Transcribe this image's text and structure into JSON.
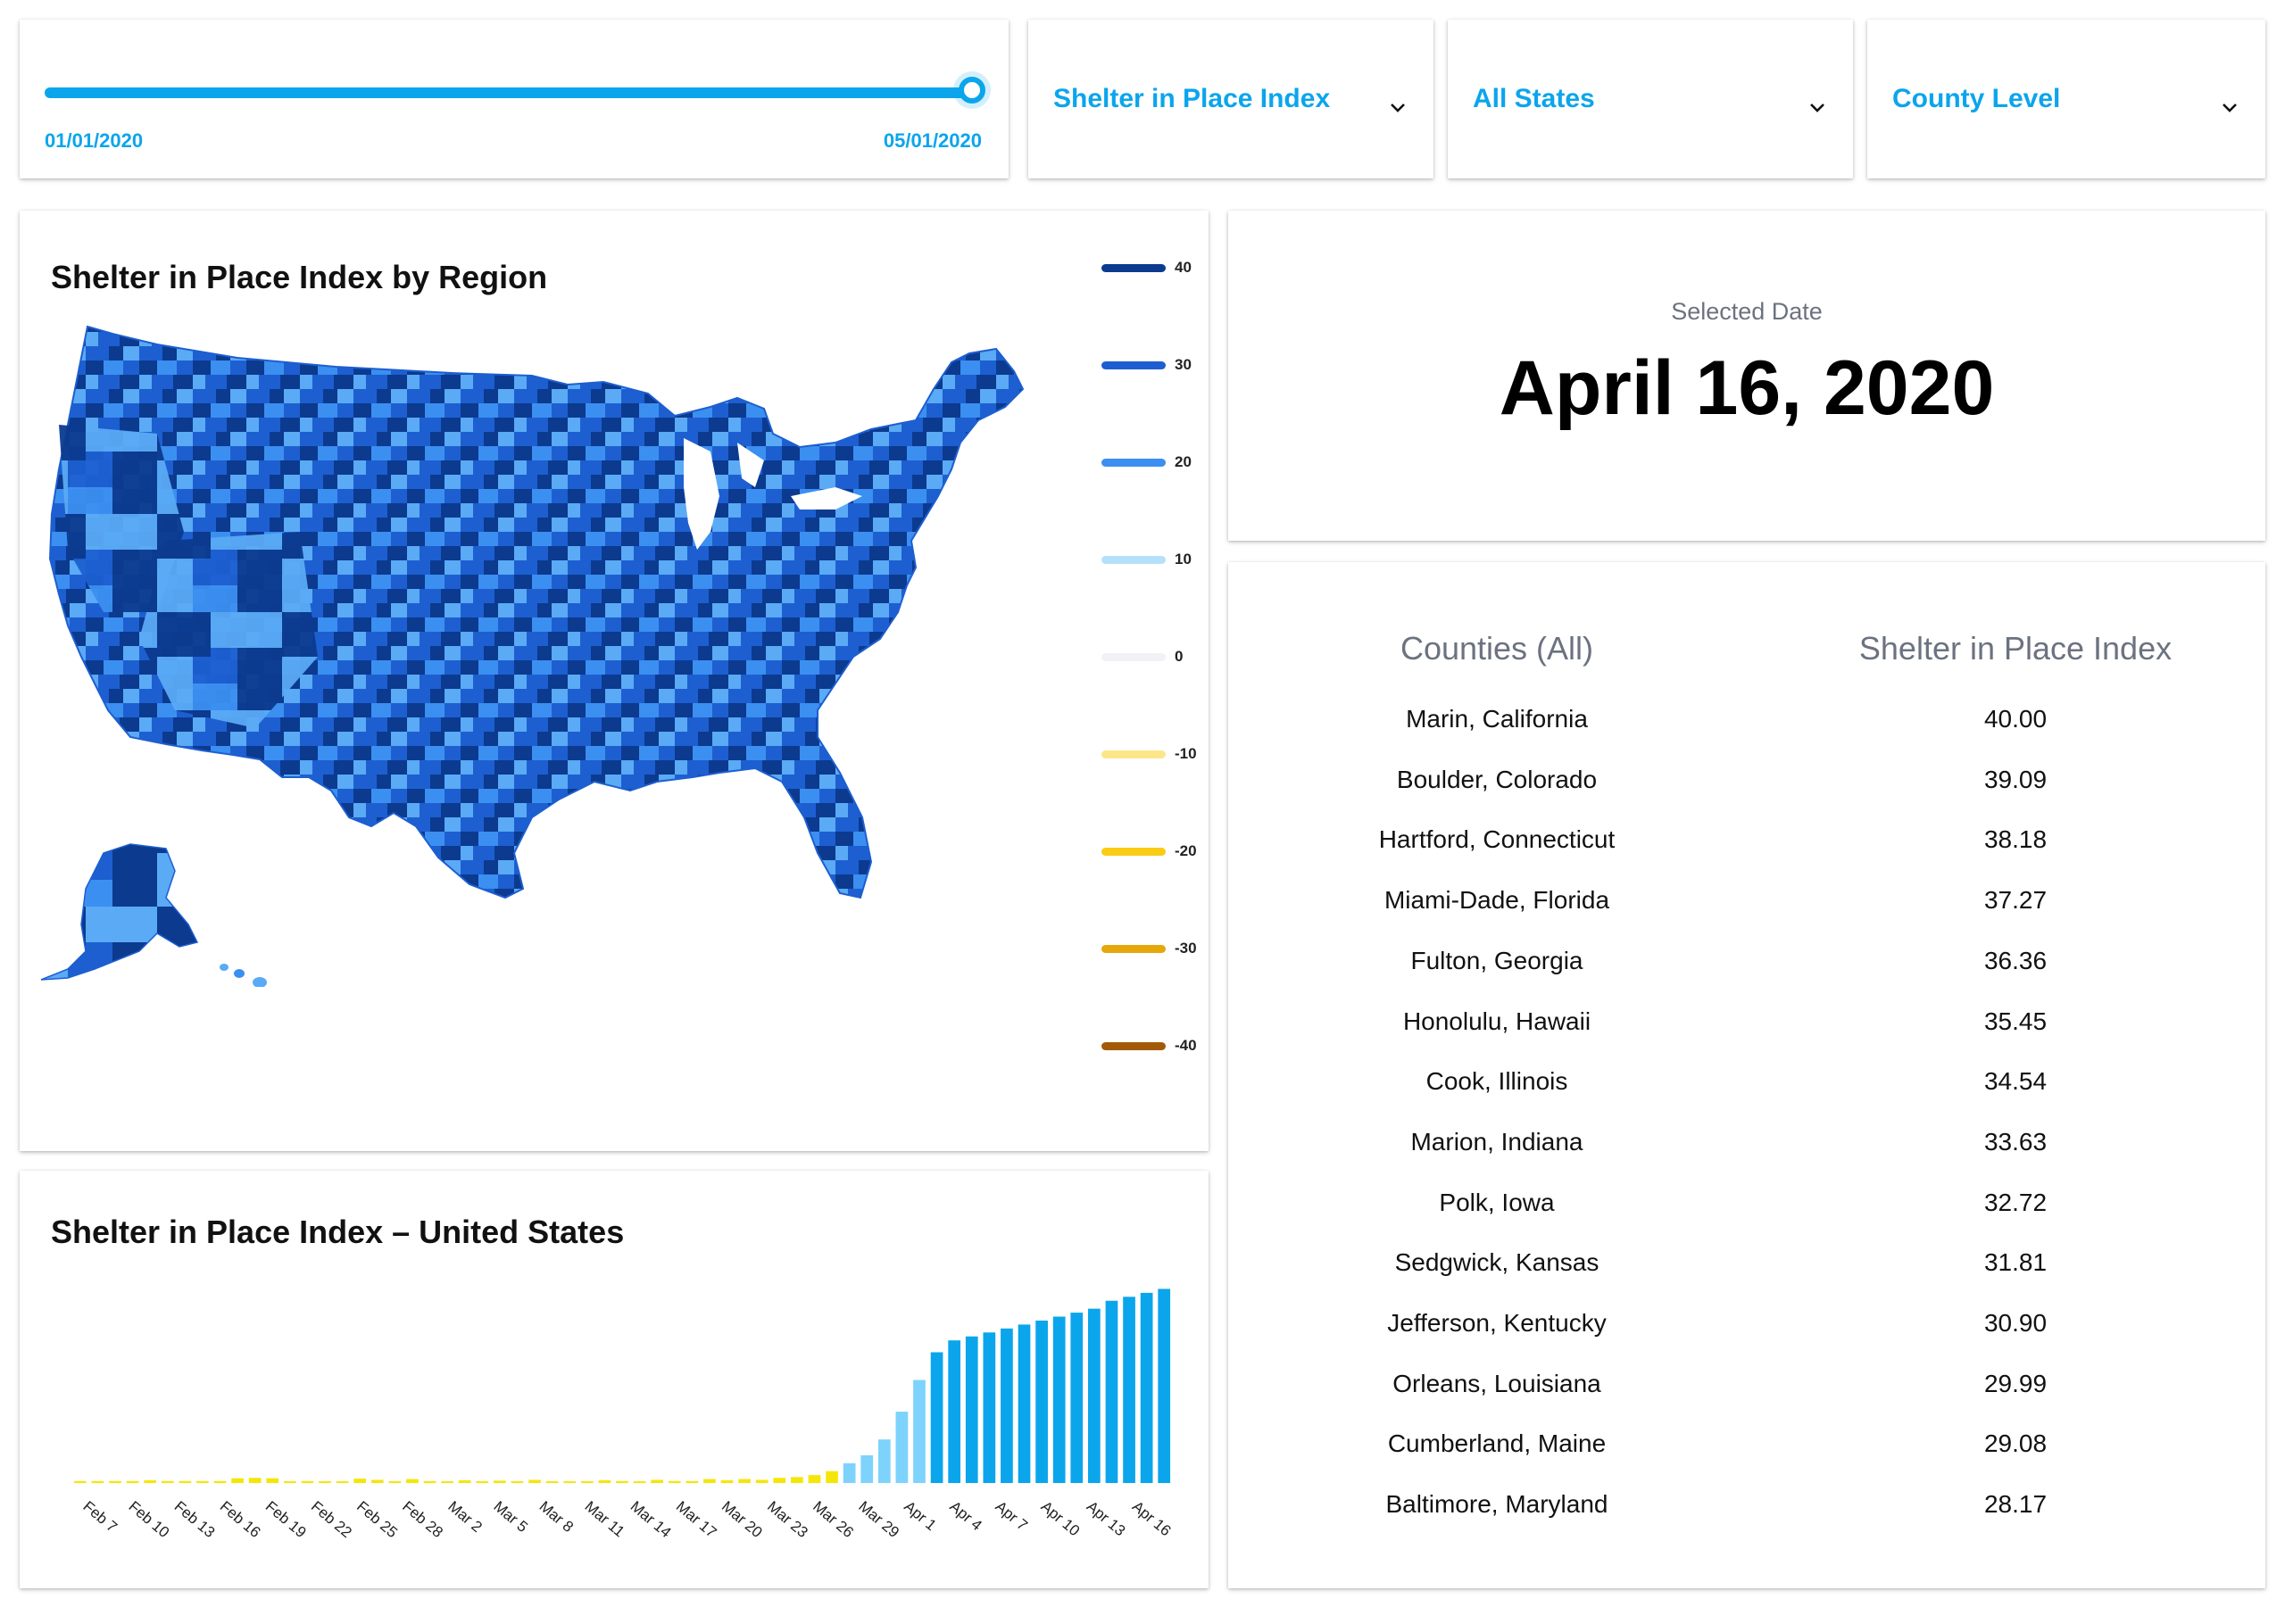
{
  "slider": {
    "start_label": "01/01/2020",
    "end_label": "05/01/2020",
    "value_fraction": 1.0
  },
  "dropdowns": [
    {
      "label": "Shelter in Place Index",
      "icon": "chevron-down-icon"
    },
    {
      "label": "All States",
      "icon": "chevron-down-icon"
    },
    {
      "label": "County Level",
      "icon": "chevron-down-icon"
    }
  ],
  "map": {
    "title": "Shelter in Place Index by Region",
    "legend": [
      {
        "label": "40",
        "color": "#0b3a8f"
      },
      {
        "label": "30",
        "color": "#1d5fd1"
      },
      {
        "label": "20",
        "color": "#3b8ff0"
      },
      {
        "label": "10",
        "color": "#b6e0fa"
      },
      {
        "label": "0",
        "color": "#f1f2f6"
      },
      {
        "label": "-10",
        "color": "#fde68a"
      },
      {
        "label": "-20",
        "color": "#facc15"
      },
      {
        "label": "-30",
        "color": "#e6a70b"
      },
      {
        "label": "-40",
        "color": "#a35a07"
      }
    ]
  },
  "selected": {
    "label": "Selected Date",
    "date": "April 16, 2020"
  },
  "table": {
    "headers": [
      "Counties (All)",
      "Shelter in Place Index"
    ],
    "rows": [
      {
        "county": "Marin, California",
        "value": "40.00"
      },
      {
        "county": "Boulder, Colorado",
        "value": "39.09"
      },
      {
        "county": "Hartford, Connecticut",
        "value": "38.18"
      },
      {
        "county": "Miami-Dade, Florida",
        "value": "37.27"
      },
      {
        "county": "Fulton, Georgia",
        "value": "36.36"
      },
      {
        "county": "Honolulu, Hawaii",
        "value": "35.45"
      },
      {
        "county": "Cook, Illinois",
        "value": "34.54"
      },
      {
        "county": "Marion, Indiana",
        "value": "33.63"
      },
      {
        "county": "Polk, Iowa",
        "value": "32.72"
      },
      {
        "county": "Sedgwick, Kansas",
        "value": "31.81"
      },
      {
        "county": "Jefferson, Kentucky",
        "value": "30.90"
      },
      {
        "county": "Orleans, Louisiana",
        "value": "29.99"
      },
      {
        "county": "Cumberland, Maine",
        "value": "29.08"
      },
      {
        "county": "Baltimore, Maryland",
        "value": "28.17"
      }
    ]
  },
  "chart_data": {
    "type": "bar",
    "title": "Shelter in Place Index – United States",
    "tick_labels": [
      "Feb 7",
      "Feb 10",
      "Feb 13",
      "Feb 16",
      "Feb 19",
      "Feb 22",
      "Feb 25",
      "Feb 28",
      "Mar 2",
      "Mar 5",
      "Mar 8",
      "Mar 11",
      "Mar 14",
      "Mar 17",
      "Mar 20",
      "Mar 23",
      "Mar 26",
      "Mar 29",
      "Apr 1",
      "Apr 4",
      "Apr 7",
      "Apr 10",
      "Apr 13",
      "Apr 16"
    ],
    "values": [
      0.5,
      0.5,
      0.5,
      0.5,
      0.7,
      0.5,
      0.5,
      0.5,
      0.5,
      1.2,
      1.3,
      1.2,
      0.3,
      0.5,
      0.3,
      0.3,
      1.1,
      0.8,
      0.2,
      1.0,
      0.5,
      0.3,
      0.7,
      0.2,
      0.6,
      0.3,
      0.8,
      0.2,
      0.4,
      0.3,
      0.7,
      0.5,
      0.3,
      0.8,
      0.5,
      0.5,
      1.0,
      0.7,
      1.0,
      0.8,
      1.3,
      1.5,
      2.0,
      3.0,
      5.0,
      7.0,
      11.0,
      18.0,
      26.0,
      33.0,
      36.0,
      37.0,
      38.0,
      39.0,
      40.0,
      41.0,
      42.0,
      43.0,
      44.0,
      46.0,
      47.0,
      48.0,
      49.0
    ],
    "ylim": [
      0,
      50
    ],
    "colors": {
      "negative": "#f5e60a",
      "low": "#7dd3fc",
      "high": "#0ba5ec"
    }
  }
}
